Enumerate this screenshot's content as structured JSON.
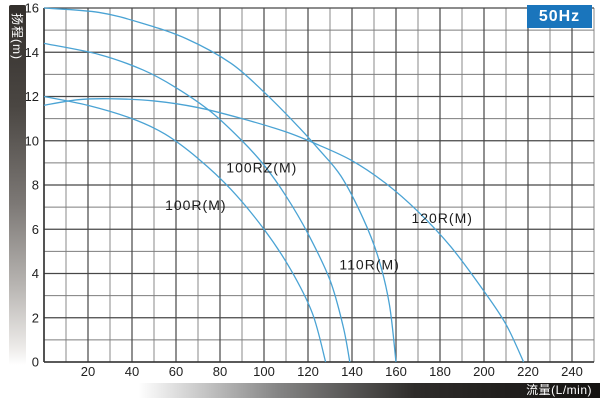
{
  "frequency_badge": "50Hz",
  "colors": {
    "curve": "#4aa3d4",
    "badge_bg": "#1a75bc",
    "badge_text": "#ffffff",
    "grid_major": "#474747",
    "grid_minor": "#7d7d7d",
    "axis_line": "#333333",
    "tick_text": "#1f1f1f",
    "series_label_text": "#1c1c1c"
  },
  "chart_data": {
    "type": "line",
    "title": "",
    "xlabel": "流量(L/min)",
    "ylabel": "扬程(m)",
    "annotation": "50Hz",
    "xlim": [
      0,
      250
    ],
    "ylim": [
      0,
      16
    ],
    "x_major_step": 20,
    "x_minor_step": 10,
    "y_major_step": 2,
    "y_minor_step": 1,
    "grid": true,
    "legend_position": "inline-labels",
    "x_ticks": [
      20,
      40,
      60,
      80,
      100,
      120,
      140,
      160,
      180,
      200,
      220,
      240
    ],
    "y_ticks": [
      0,
      2,
      4,
      6,
      8,
      10,
      12,
      14,
      16
    ],
    "series": [
      {
        "name": "100R(M)",
        "label_at": [
          69,
          7.1
        ],
        "points": [
          [
            0,
            12
          ],
          [
            20,
            11.6
          ],
          [
            40,
            11.0
          ],
          [
            55,
            10.3
          ],
          [
            70,
            9.2
          ],
          [
            85,
            7.8
          ],
          [
            100,
            6.0
          ],
          [
            112,
            4.2
          ],
          [
            122,
            2.2
          ],
          [
            128,
            0
          ]
        ]
      },
      {
        "name": "100RZ(M)",
        "label_at": [
          99,
          8.8
        ],
        "points": [
          [
            0,
            14.4
          ],
          [
            25,
            13.9
          ],
          [
            45,
            13.2
          ],
          [
            60,
            12.4
          ],
          [
            76,
            11.3
          ],
          [
            90,
            10.0
          ],
          [
            100,
            8.9
          ],
          [
            110,
            7.5
          ],
          [
            120,
            5.8
          ],
          [
            130,
            3.7
          ],
          [
            136,
            1.6
          ],
          [
            139,
            0
          ]
        ]
      },
      {
        "name": "110R(M)",
        "label_at": [
          148,
          4.4
        ],
        "points": [
          [
            0,
            16
          ],
          [
            25,
            15.8
          ],
          [
            45,
            15.3
          ],
          [
            65,
            14.6
          ],
          [
            85,
            13.5
          ],
          [
            100,
            12.2
          ],
          [
            115,
            10.7
          ],
          [
            125,
            9.6
          ],
          [
            135,
            8.4
          ],
          [
            145,
            6.5
          ],
          [
            152,
            4.7
          ],
          [
            157,
            2.6
          ],
          [
            160,
            0
          ]
        ]
      },
      {
        "name": "120R(M)",
        "label_at": [
          181,
          6.5
        ],
        "points": [
          [
            0,
            11.6
          ],
          [
            15,
            11.85
          ],
          [
            30,
            11.9
          ],
          [
            50,
            11.8
          ],
          [
            70,
            11.5
          ],
          [
            90,
            11.0
          ],
          [
            110,
            10.4
          ],
          [
            125,
            9.8
          ],
          [
            140,
            9.1
          ],
          [
            155,
            8.1
          ],
          [
            170,
            6.8
          ],
          [
            185,
            5.2
          ],
          [
            200,
            3.2
          ],
          [
            210,
            1.7
          ],
          [
            218,
            0
          ]
        ]
      }
    ]
  }
}
